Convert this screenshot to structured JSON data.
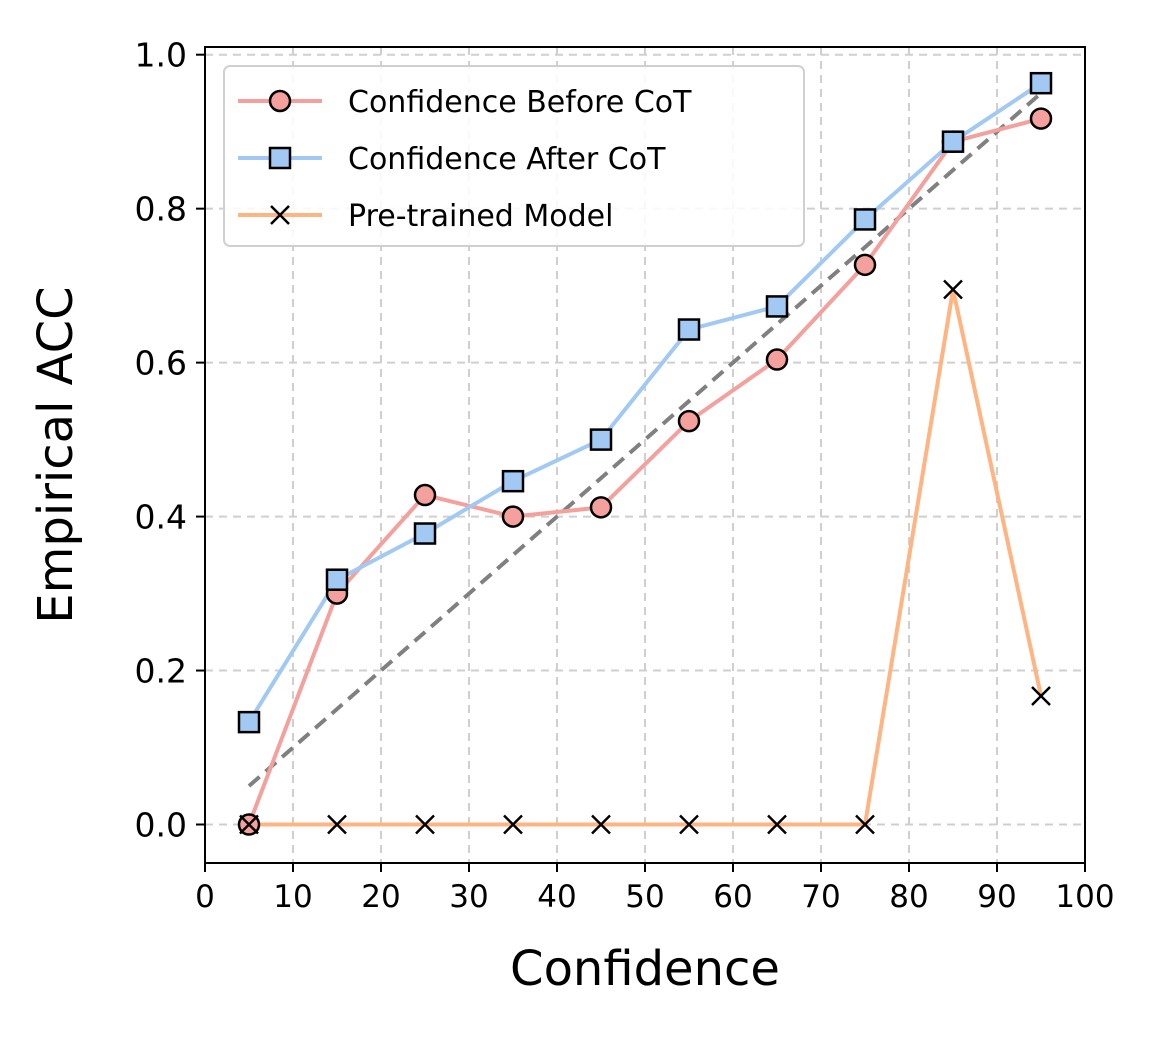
{
  "chart_data": {
    "type": "line",
    "xlabel": "Confidence",
    "ylabel": "Empirical ACC",
    "xlim": [
      0,
      100
    ],
    "ylim": [
      -0.05,
      1.01
    ],
    "xticks": [
      "0",
      "10",
      "20",
      "30",
      "40",
      "50",
      "60",
      "70",
      "80",
      "90",
      "100"
    ],
    "yticks": [
      "0.0",
      "0.2",
      "0.4",
      "0.6",
      "0.8",
      "1.0"
    ],
    "grid": true,
    "legend_position": "top-left",
    "x": [
      5,
      15,
      25,
      35,
      45,
      55,
      65,
      75,
      85,
      95
    ],
    "series": [
      {
        "name": "Confidence Before CoT",
        "marker": "circle",
        "color": "#f4a09c",
        "values": [
          0.0,
          0.3,
          0.428,
          0.4,
          0.412,
          0.524,
          0.604,
          0.727,
          0.887,
          0.917
        ]
      },
      {
        "name": "Confidence After CoT",
        "marker": "square",
        "color": "#a1c9f4",
        "values": [
          0.133,
          0.318,
          0.378,
          0.446,
          0.5,
          0.643,
          0.673,
          0.786,
          0.887,
          0.963
        ]
      },
      {
        "name": "Pre-trained Model",
        "marker": "x",
        "color": "#ffb482",
        "values": [
          0.0,
          0.0,
          0.0,
          0.0,
          0.0,
          0.0,
          0.0,
          0.0,
          0.695,
          0.167
        ]
      }
    ],
    "reference_line": {
      "name": "perfect calibration",
      "style": "dashed",
      "color": "#808080",
      "x": [
        5,
        95
      ],
      "y": [
        0.05,
        0.95
      ]
    }
  }
}
